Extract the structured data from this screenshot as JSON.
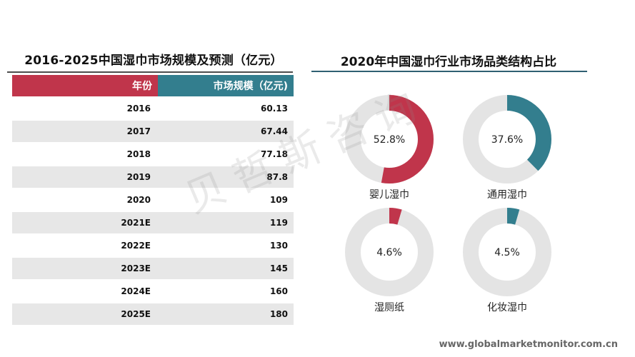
{
  "left_title": "2016-2025中国湿巾市场规模及预测（亿元）",
  "table": {
    "headers": [
      "年份",
      "市场规模（亿元)"
    ],
    "rows": [
      [
        "2016",
        "60.13"
      ],
      [
        "2017",
        "67.44"
      ],
      [
        "2018",
        "77.18"
      ],
      [
        "2019",
        "87.8"
      ],
      [
        "2020",
        "109"
      ],
      [
        "2021E",
        "119"
      ],
      [
        "2022E",
        "130"
      ],
      [
        "2023E",
        "145"
      ],
      [
        "2024E",
        "160"
      ],
      [
        "2025E",
        "180"
      ]
    ]
  },
  "right_title": "2020年中国湿巾行业市场品类结构占比",
  "chart_data": [
    {
      "type": "table",
      "title": "2016-2025中国湿巾市场规模及预测（亿元）",
      "columns": [
        "年份",
        "市场规模（亿元)"
      ],
      "rows": [
        [
          "2016",
          60.13
        ],
        [
          "2017",
          67.44
        ],
        [
          "2018",
          77.18
        ],
        [
          "2019",
          87.8
        ],
        [
          "2020",
          109
        ],
        [
          "2021E",
          119
        ],
        [
          "2022E",
          130
        ],
        [
          "2023E",
          145
        ],
        [
          "2024E",
          160
        ],
        [
          "2025E",
          180
        ]
      ]
    },
    {
      "type": "pie",
      "title": "2020年中国湿巾行业市场品类结构占比",
      "slices": [
        {
          "label": "婴儿湿巾",
          "value": 52.8,
          "display": "52.8%",
          "color": "#c0354b"
        },
        {
          "label": "通用湿巾",
          "value": 37.6,
          "display": "37.6%",
          "color": "#337e8e"
        },
        {
          "label": "湿厕纸",
          "value": 4.6,
          "display": "4.6%",
          "color": "#c0354b"
        },
        {
          "label": "化妆湿巾",
          "value": 4.5,
          "display": "4.5%",
          "color": "#337e8e"
        }
      ],
      "track_color": "#e4e4e4"
    }
  ],
  "watermark": "贝哲斯咨询",
  "footer": "www.globalmarketmonitor.com.cn"
}
